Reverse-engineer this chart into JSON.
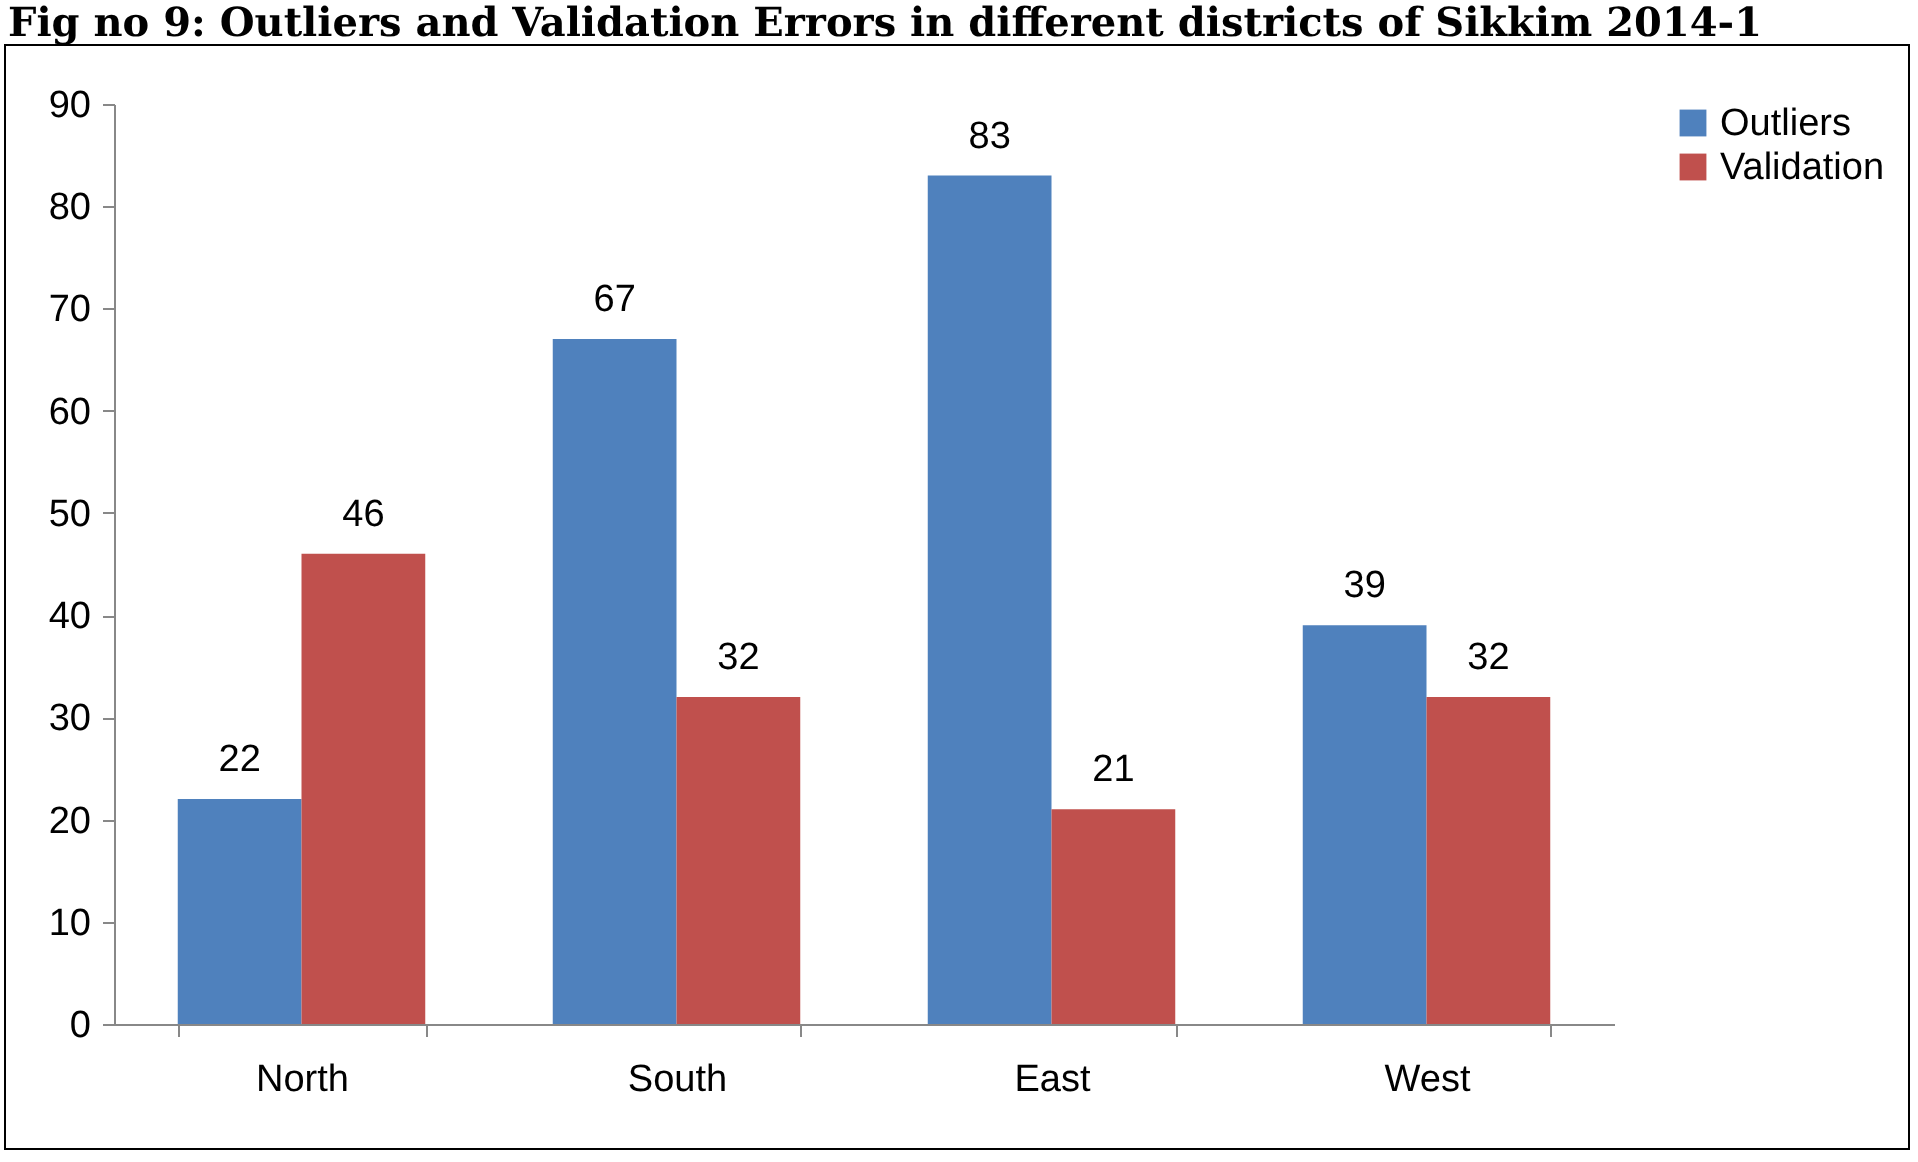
{
  "chart_data": {
    "type": "bar",
    "title": "Fig no 9: Outliers and Validation Errors in different districts of Sikkim 2014-1",
    "categories": [
      "North",
      "South",
      "East",
      "West"
    ],
    "series": [
      {
        "name": "Outliers",
        "color": "#4f81bd",
        "values": [
          22,
          67,
          83,
          39
        ]
      },
      {
        "name": "Validation",
        "color": "#c0504d",
        "values": [
          46,
          32,
          21,
          32
        ]
      }
    ],
    "ylim": [
      0,
      90
    ],
    "yticks": [
      0,
      10,
      20,
      30,
      40,
      50,
      60,
      70,
      80,
      90
    ],
    "grid": false,
    "legend": "right",
    "data_labels": true
  }
}
